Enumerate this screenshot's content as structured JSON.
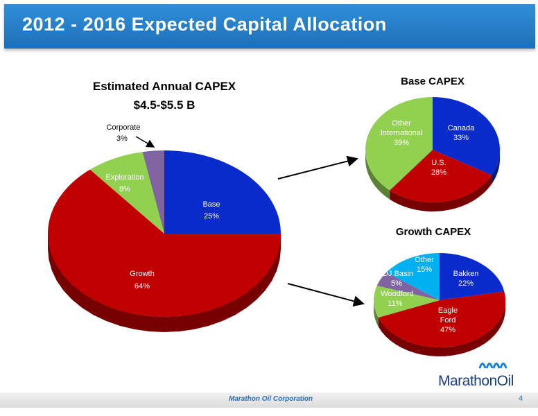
{
  "title": "2012 - 2016 Expected Capital Allocation",
  "footer": {
    "company": "Marathon Oil Corporation",
    "page": "4"
  },
  "logo_text": "MarathonOil",
  "colors": {
    "title_bar": "#1e6fb8",
    "base": "#0a2bcc",
    "growth": "#c00000",
    "green": "#92d050",
    "purple": "#8064a2",
    "cyan": "#00b0f0",
    "logo": "#1c3f7a"
  },
  "chart_data": [
    {
      "type": "pie",
      "title": "Estimated Annual CAPEX",
      "subtitle": "$4.5-$5.5 B",
      "categories": [
        "Base",
        "Growth",
        "Exploration",
        "Corporate"
      ],
      "values": [
        25,
        64,
        8,
        3
      ],
      "labels": [
        "25%",
        "64%",
        "8%",
        "3%"
      ],
      "colors": [
        "#0a2bcc",
        "#c00000",
        "#92d050",
        "#8064a2"
      ]
    },
    {
      "type": "pie",
      "title": "Base CAPEX",
      "categories": [
        "Canada",
        "U.S.",
        "Other International"
      ],
      "values": [
        33,
        28,
        39
      ],
      "labels": [
        "33%",
        "28%",
        "39%"
      ],
      "colors": [
        "#0a2bcc",
        "#c00000",
        "#92d050"
      ]
    },
    {
      "type": "pie",
      "title": "Growth CAPEX",
      "categories": [
        "Bakken",
        "Eagle Ford",
        "Woodford",
        "DJ Basin",
        "Other"
      ],
      "values": [
        22,
        47,
        11,
        5,
        15
      ],
      "labels": [
        "22%",
        "47%",
        "11%",
        "5%",
        "15%"
      ],
      "colors": [
        "#0a2bcc",
        "#c00000",
        "#92d050",
        "#8064a2",
        "#00b0f0"
      ]
    }
  ]
}
